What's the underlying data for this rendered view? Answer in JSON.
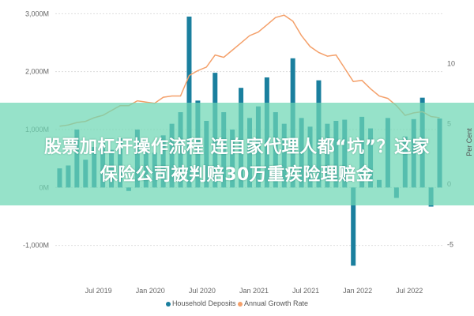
{
  "chart_data": {
    "type": "bar+line",
    "categories": [
      "Feb 2019",
      "Mar 2019",
      "Apr 2019",
      "May 2019",
      "Jun 2019",
      "Jul 2019",
      "Aug 2019",
      "Sep 2019",
      "Oct 2019",
      "Nov 2019",
      "Dec 2019",
      "Jan 2020",
      "Feb 2020",
      "Mar 2020",
      "Apr 2020",
      "May 2020",
      "Jun 2020",
      "Jul 2020",
      "Aug 2020",
      "Sep 2020",
      "Oct 2020",
      "Nov 2020",
      "Dec 2020",
      "Jan 2021",
      "Feb 2021",
      "Mar 2021",
      "Apr 2021",
      "May 2021",
      "Jun 2021",
      "Jul 2021",
      "Aug 2021",
      "Sep 2021",
      "Oct 2021",
      "Nov 2021",
      "Dec 2021",
      "Jan 2022",
      "Feb 2022",
      "Mar 2022",
      "Apr 2022",
      "May 2022",
      "Jun 2022",
      "Jul 2022",
      "Aug 2022",
      "Sep 2022",
      "Oct 2022"
    ],
    "series": [
      {
        "name": "Household Deposits",
        "type": "bar",
        "axis": "left",
        "color": "#1a7f9e",
        "values": [
          330,
          380,
          1000,
          480,
          700,
          800,
          650,
          850,
          -60,
          1000,
          750,
          600,
          900,
          1100,
          1300,
          2950,
          1500,
          1150,
          1980,
          1300,
          1000,
          1720,
          1200,
          1400,
          1900,
          1300,
          1100,
          2230,
          1200,
          1050,
          1850,
          1100,
          1150,
          1170,
          -1350,
          1220,
          1020,
          130,
          1200,
          -180,
          880,
          1180,
          1550,
          -330,
          1190
        ]
      },
      {
        "name": "Annual Growth Rate",
        "type": "line",
        "axis": "right",
        "color": "#f4a06a",
        "values": [
          4.8,
          4.9,
          5.1,
          5.2,
          5.5,
          5.7,
          6.1,
          6.5,
          6.5,
          6.9,
          6.8,
          6.7,
          7.2,
          7.3,
          7.3,
          9.0,
          9.4,
          9.7,
          10.7,
          10.5,
          11.1,
          11.7,
          12.3,
          12.6,
          13.2,
          13.8,
          14.0,
          13.5,
          12.3,
          11.4,
          10.9,
          10.6,
          10.7,
          9.6,
          8.5,
          8.6,
          7.9,
          7.3,
          7.1,
          6.5,
          5.7,
          5.9,
          6.0,
          5.6,
          5.5
        ]
      }
    ],
    "x_tick_labels": [
      "Jul 2019",
      "Jan 2020",
      "Jul 2020",
      "Jan 2021",
      "Jul 2021",
      "Jan 2022",
      "Jul 2022"
    ],
    "y_left_ticks": [
      {
        "v": 3000,
        "label": "3,000M"
      },
      {
        "v": 2000,
        "label": "2,000M"
      },
      {
        "v": 1000,
        "label": "1,000M"
      },
      {
        "v": 0,
        "label": "0M"
      },
      {
        "v": -1000,
        "label": "-1,000M"
      }
    ],
    "y_right_ticks": [
      {
        "v": 10,
        "label": "10"
      },
      {
        "v": 5,
        "label": "5"
      },
      {
        "v": 0,
        "label": "0"
      },
      {
        "v": -5,
        "label": "-5"
      }
    ],
    "ylabel_right": "Per Cent",
    "ylim_left": [
      -1400,
      3100
    ],
    "ylim_right": [
      -7,
      14.6
    ],
    "grid": true,
    "legend_placement": "bottom"
  },
  "legend": {
    "items": [
      {
        "label": "Household Deposits",
        "color": "#1a7f9e"
      },
      {
        "label": "Annual Growth Rate",
        "color": "#f4a06a"
      }
    ]
  },
  "overlay": {
    "line1": "股票加杠杆操作流程 连自家代理人都“坑”？这家",
    "line2": "保险公司被判赔30万重疾险理赔金"
  }
}
